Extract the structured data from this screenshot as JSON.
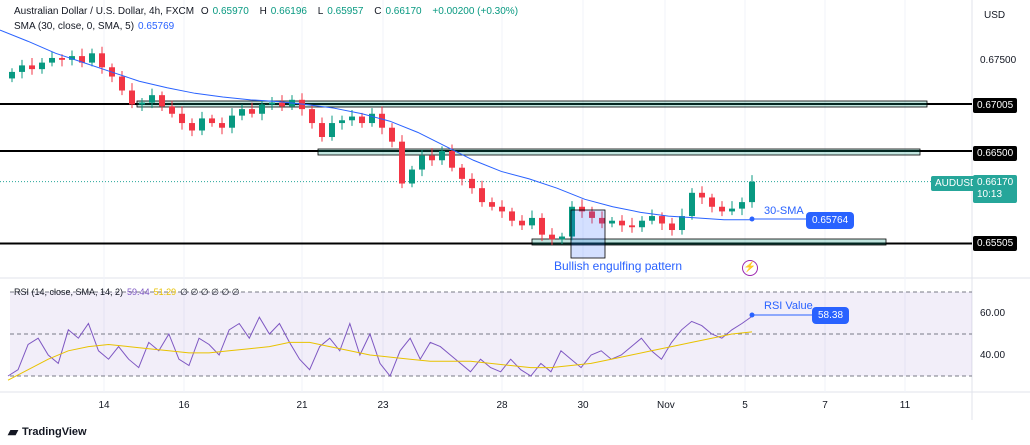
{
  "header": {
    "title": "Australian Dollar / U.S. Dollar, 4h, FXCM",
    "o_label": "O",
    "open": "0.65970",
    "h_label": "H",
    "high": "0.66196",
    "l_label": "L",
    "low": "0.65957",
    "c_label": "C",
    "close": "0.66170",
    "change": "+0.00200 (+0.30%)"
  },
  "sma": {
    "label": "SMA (30, close, 0, SMA, 5)",
    "value": "0.65769"
  },
  "rsi": {
    "label": "RSI (14, close, SMA, 14, 2)",
    "value": "59.44",
    "sma_value": "51.29",
    "extras": "∅ ∅ ∅ ∅ ∅ ∅"
  },
  "currency": "USD",
  "price_axis": [
    "0.67500",
    "0.67005",
    "0.66500",
    "0.65505"
  ],
  "rsi_axis": [
    "60.00",
    "40.00"
  ],
  "symbol_tag": "AUDUSD",
  "last_price": "0.66170",
  "countdown": "10:13",
  "annotations": {
    "sma_label": "30-SMA",
    "sma_value": "0.65764",
    "pattern": "Bullish engulfing pattern",
    "rsi_label": "RSI Value",
    "rsi_value": "58.38"
  },
  "x_axis": [
    "14",
    "16",
    "21",
    "23",
    "28",
    "30",
    "Nov",
    "5",
    "7",
    "11"
  ],
  "footer": "TradingView",
  "colors": {
    "up": "#089981",
    "down": "#f23645",
    "sma": "#2962ff",
    "rsi": "#7e57c2",
    "rsi_ma": "#e8c200"
  },
  "chart_data": {
    "type": "candlestick",
    "closes": [
      0.6735,
      0.6742,
      0.6738,
      0.6745,
      0.675,
      0.6748,
      0.6752,
      0.6745,
      0.6755,
      0.674,
      0.673,
      0.6715,
      0.67,
      0.6702,
      0.671,
      0.6698,
      0.669,
      0.668,
      0.6672,
      0.6685,
      0.668,
      0.6675,
      0.6688,
      0.6695,
      0.669,
      0.67,
      0.6702,
      0.6698,
      0.6705,
      0.6695,
      0.668,
      0.6665,
      0.668,
      0.6683,
      0.6687,
      0.668,
      0.669,
      0.6675,
      0.666,
      0.6615,
      0.663,
      0.6645,
      0.664,
      0.665,
      0.6632,
      0.662,
      0.661,
      0.6595,
      0.659,
      0.6585,
      0.6575,
      0.657,
      0.6578,
      0.656,
      0.6555,
      0.6558,
      0.659,
      0.6585,
      0.6578,
      0.6572,
      0.6575,
      0.657,
      0.6568,
      0.6575,
      0.658,
      0.6572,
      0.6565,
      0.658,
      0.6605,
      0.66,
      0.659,
      0.6585,
      0.6588,
      0.6595,
      0.6617
    ],
    "sma_values": [
      0.678,
      0.6768,
      0.6755,
      0.6745,
      0.6735,
      0.6725,
      0.6718,
      0.6712,
      0.6708,
      0.6705,
      0.6703,
      0.67,
      0.6696,
      0.669,
      0.6682,
      0.667,
      0.6655,
      0.664,
      0.6628,
      0.662,
      0.661,
      0.6598,
      0.659,
      0.6584,
      0.658,
      0.6578,
      0.6576,
      0.6576
    ],
    "rsi": [
      30,
      33,
      45,
      48,
      40,
      36,
      52,
      48,
      55,
      42,
      38,
      44,
      38,
      34,
      46,
      42,
      50,
      38,
      35,
      48,
      45,
      40,
      52,
      55,
      48,
      58,
      50,
      55,
      46,
      38,
      33,
      44,
      48,
      42,
      55,
      40,
      50,
      36,
      30,
      42,
      48,
      38,
      46,
      44,
      40,
      36,
      32,
      38,
      34,
      32,
      38,
      33,
      30,
      36,
      32,
      42,
      38,
      34,
      40,
      42,
      38,
      40,
      44,
      48,
      42,
      38,
      46,
      52,
      56,
      54,
      50,
      48,
      52,
      55,
      58.4
    ],
    "rsi_ma": [
      28,
      33,
      38,
      42,
      44,
      45,
      44,
      43,
      42,
      41,
      41,
      42,
      43,
      44,
      46,
      46,
      44,
      42,
      40,
      39,
      38,
      37,
      37,
      37,
      36,
      35,
      34,
      34,
      35,
      36,
      38,
      40,
      42,
      44,
      46,
      48,
      50,
      51
    ],
    "levels": [
      0.67005,
      0.665,
      0.65505
    ]
  }
}
